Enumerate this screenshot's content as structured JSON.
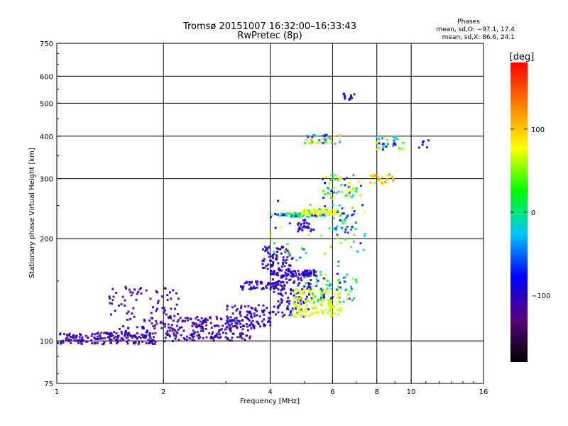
{
  "chart_data": {
    "type": "scatter",
    "title": "Tromsø 20151007 16:32:00–16:33:43",
    "subtitle": "RwPretec (8p)",
    "xlabel": "Frequency [MHz]",
    "ylabel": "Stationary phase Virtual Height [km]",
    "x_scale": "log",
    "y_scale": "log",
    "xlim": [
      1,
      16
    ],
    "ylim": [
      75,
      750
    ],
    "x_ticks": [
      1,
      2,
      4,
      6,
      8,
      10,
      16
    ],
    "x_tick_labels": [
      "1",
      "2",
      "4",
      "6",
      "8",
      "10",
      "16"
    ],
    "x_grid": [
      2,
      4,
      6,
      8,
      10
    ],
    "y_ticks": [
      75,
      100,
      200,
      300,
      400,
      500,
      600,
      750
    ],
    "y_tick_labels": [
      "75",
      "100",
      "200",
      "300",
      "400",
      "500",
      "600",
      "750"
    ],
    "y_grid": [
      100,
      200,
      300,
      400,
      500,
      600
    ],
    "grid": true,
    "colorbar": {
      "title": "[deg]",
      "range": [
        -180,
        180
      ],
      "ticks": [
        100,
        0,
        -100
      ],
      "tick_labels": [
        "100",
        "0",
        "−100"
      ],
      "colors": [
        "#000000",
        "#5a0080",
        "#0000ff",
        "#00c8ff",
        "#00ff00",
        "#ffff00",
        "#ff8000",
        "#ff0000"
      ]
    },
    "stats": {
      "header": "Phases",
      "line_o": "mean, sd,O:  −97.1, 17.4",
      "line_x": "mean, sd,X:  86.6, 24.1"
    },
    "point_size": 1,
    "clusters": [
      {
        "x": [
          1.0,
          1.9
        ],
        "y": [
          98,
          106
        ],
        "n": 160,
        "phase": [
          -120,
          -100
        ]
      },
      {
        "x": [
          1.4,
          2.2
        ],
        "y": [
          102,
          145
        ],
        "n": 110,
        "phase": [
          -120,
          -95
        ]
      },
      {
        "x": [
          2.0,
          3.6
        ],
        "y": [
          100,
          118
        ],
        "n": 210,
        "phase": [
          -125,
          -95
        ]
      },
      {
        "x": [
          3.0,
          4.0
        ],
        "y": [
          110,
          128
        ],
        "n": 90,
        "phase": [
          -120,
          -80
        ]
      },
      {
        "x": [
          3.3,
          4.4
        ],
        "y": [
          142,
          150
        ],
        "n": 60,
        "phase": [
          -110,
          -95
        ]
      },
      {
        "x": [
          4.0,
          5.4
        ],
        "y": [
          155,
          162
        ],
        "n": 70,
        "phase": [
          -110,
          -95
        ]
      },
      {
        "x": [
          3.8,
          4.6
        ],
        "y": [
          162,
          190
        ],
        "n": 70,
        "phase": [
          -110,
          -95
        ]
      },
      {
        "x": [
          4.0,
          5.2
        ],
        "y": [
          118,
          160
        ],
        "n": 120,
        "phase": [
          -110,
          -80
        ]
      },
      {
        "x": [
          4.6,
          6.3
        ],
        "y": [
          118,
          142
        ],
        "n": 140,
        "phase": [
          55,
          85
        ]
      },
      {
        "x": [
          5.0,
          7.0
        ],
        "y": [
          130,
          160
        ],
        "n": 70,
        "phase": [
          -100,
          70
        ]
      },
      {
        "x": [
          4.0,
          5.7
        ],
        "y": [
          232,
          238
        ],
        "n": 70,
        "phase": [
          -100,
          60
        ]
      },
      {
        "x": [
          4.9,
          6.2
        ],
        "y": [
          235,
          244
        ],
        "n": 60,
        "phase": [
          60,
          85
        ]
      },
      {
        "x": [
          4.7,
          5.3
        ],
        "y": [
          210,
          228
        ],
        "n": 25,
        "phase": [
          -105,
          -95
        ]
      },
      {
        "x": [
          5.0,
          6.3
        ],
        "y": [
          380,
          405
        ],
        "n": 45,
        "phase": [
          -100,
          130
        ]
      },
      {
        "x": [
          5.6,
          7.2
        ],
        "y": [
          260,
          310
        ],
        "n": 60,
        "phase": [
          -110,
          110
        ]
      },
      {
        "x": [
          6.0,
          7.0
        ],
        "y": [
          205,
          260
        ],
        "n": 35,
        "phase": [
          -100,
          60
        ]
      },
      {
        "x": [
          7.8,
          9.6
        ],
        "y": [
          365,
          400
        ],
        "n": 35,
        "phase": [
          -110,
          80
        ]
      },
      {
        "x": [
          7.6,
          8.9
        ],
        "y": [
          290,
          310
        ],
        "n": 25,
        "phase": [
          60,
          140
        ]
      },
      {
        "x": [
          4.0,
          7.5
        ],
        "y": [
          165,
          260
        ],
        "n": 50,
        "phase": [
          -110,
          80
        ]
      },
      {
        "x": [
          6.4,
          6.9
        ],
        "y": [
          500,
          540
        ],
        "n": 12,
        "phase": [
          -110,
          -90
        ]
      },
      {
        "x": [
          10.5,
          11.2
        ],
        "y": [
          370,
          390
        ],
        "n": 6,
        "phase": [
          -105,
          -95
        ]
      }
    ]
  }
}
